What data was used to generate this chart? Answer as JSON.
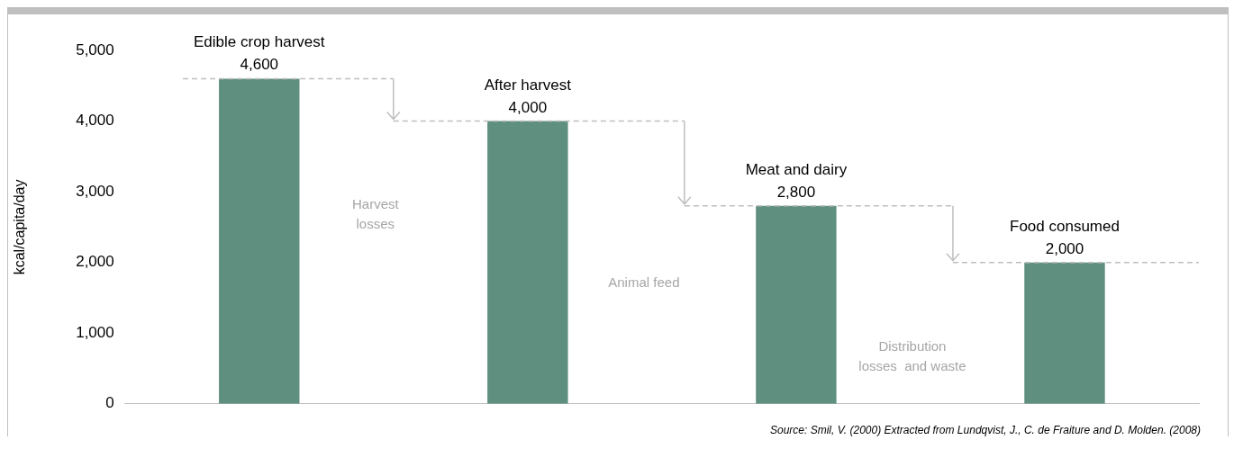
{
  "chart_data": {
    "type": "bar",
    "ylabel": "kcal/capita/day",
    "categories": [
      "Edible crop harvest",
      "After harvest",
      "Meat and dairy",
      "Food consumed"
    ],
    "values": [
      4600,
      4000,
      2800,
      2000
    ],
    "value_labels": [
      "4,600",
      "4,000",
      "2,800",
      "2,000"
    ],
    "color": "#5f8f7f",
    "ylim": [
      0,
      5000
    ],
    "yticks": [
      {
        "value": 0,
        "label": "0"
      },
      {
        "value": 1000,
        "label": "1,000"
      },
      {
        "value": 2000,
        "label": "2,000"
      },
      {
        "value": 3000,
        "label": "3,000"
      },
      {
        "value": 4000,
        "label": "4,000"
      },
      {
        "value": 5000,
        "label": "5,000"
      }
    ],
    "grid": false,
    "legend": false,
    "annotations": [
      "Harvest losses",
      "Animal feed",
      "Distribution losses  and waste",
      "Source: Smil, V. (2000) Extracted from Lundqvist, J., C. de Fraiture and D. Molden. (2008)"
    ]
  }
}
